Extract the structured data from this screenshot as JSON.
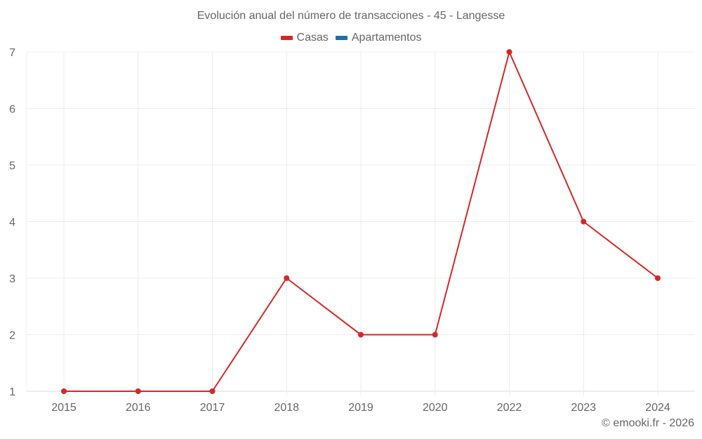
{
  "header": {
    "title": "Evolución anual del número de transacciones - 45 - Langesse"
  },
  "legend": [
    {
      "label": "Casas",
      "color": "#d62728"
    },
    {
      "label": "Apartamentos",
      "color": "#1f6fa8"
    }
  ],
  "credit": "© emooki.fr - 2026",
  "chart_data": {
    "type": "line",
    "title": "Evolución anual del número de transacciones - 45 - Langesse",
    "xlabel": "",
    "ylabel": "",
    "categories": [
      "2015",
      "2016",
      "2017",
      "2018",
      "2019",
      "2020",
      "2022",
      "2023",
      "2024"
    ],
    "series": [
      {
        "name": "Casas",
        "color": "#d62728",
        "values": [
          1,
          1,
          1,
          3,
          2,
          2,
          7,
          4,
          3
        ]
      },
      {
        "name": "Apartamentos",
        "color": "#1f6fa8",
        "values": []
      }
    ],
    "ylim": [
      1,
      7
    ],
    "yticks": [
      1,
      2,
      3,
      4,
      5,
      6,
      7
    ],
    "grid": true,
    "legend_position": "top"
  }
}
